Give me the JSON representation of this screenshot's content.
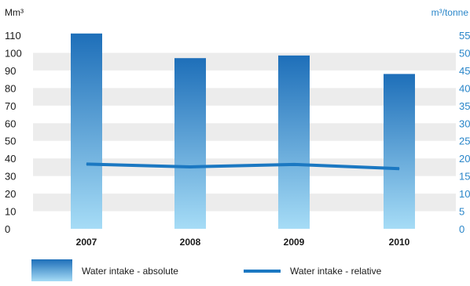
{
  "chart_data": {
    "type": "bar",
    "categories": [
      "2007",
      "2008",
      "2009",
      "2010"
    ],
    "left_axis": {
      "unit": "Mm³",
      "ylim": [
        0,
        110
      ],
      "ticks": [
        0,
        10,
        20,
        30,
        40,
        50,
        60,
        70,
        80,
        90,
        100,
        110
      ]
    },
    "right_axis": {
      "unit": "m³/tonne",
      "ylim": [
        0,
        55
      ],
      "ticks": [
        0,
        5,
        10,
        15,
        20,
        25,
        30,
        35,
        40,
        45,
        50,
        55
      ]
    },
    "series": [
      {
        "name": "Water intake - absolute",
        "type": "bar",
        "axis": "left",
        "values": [
          111,
          97,
          98.5,
          88
        ]
      },
      {
        "name": "Water intake - relative",
        "type": "line",
        "axis": "right",
        "values": [
          18.4,
          17.6,
          18.3,
          17.1
        ]
      }
    ],
    "grid": true,
    "legend_position": "bottom",
    "colors": {
      "bar_top": "#1e6fb9",
      "bar_bottom": "#a6dcf6",
      "line": "#1b78c2",
      "grid_band": "#ececec",
      "right_axis_text": "#2a86c9"
    }
  }
}
